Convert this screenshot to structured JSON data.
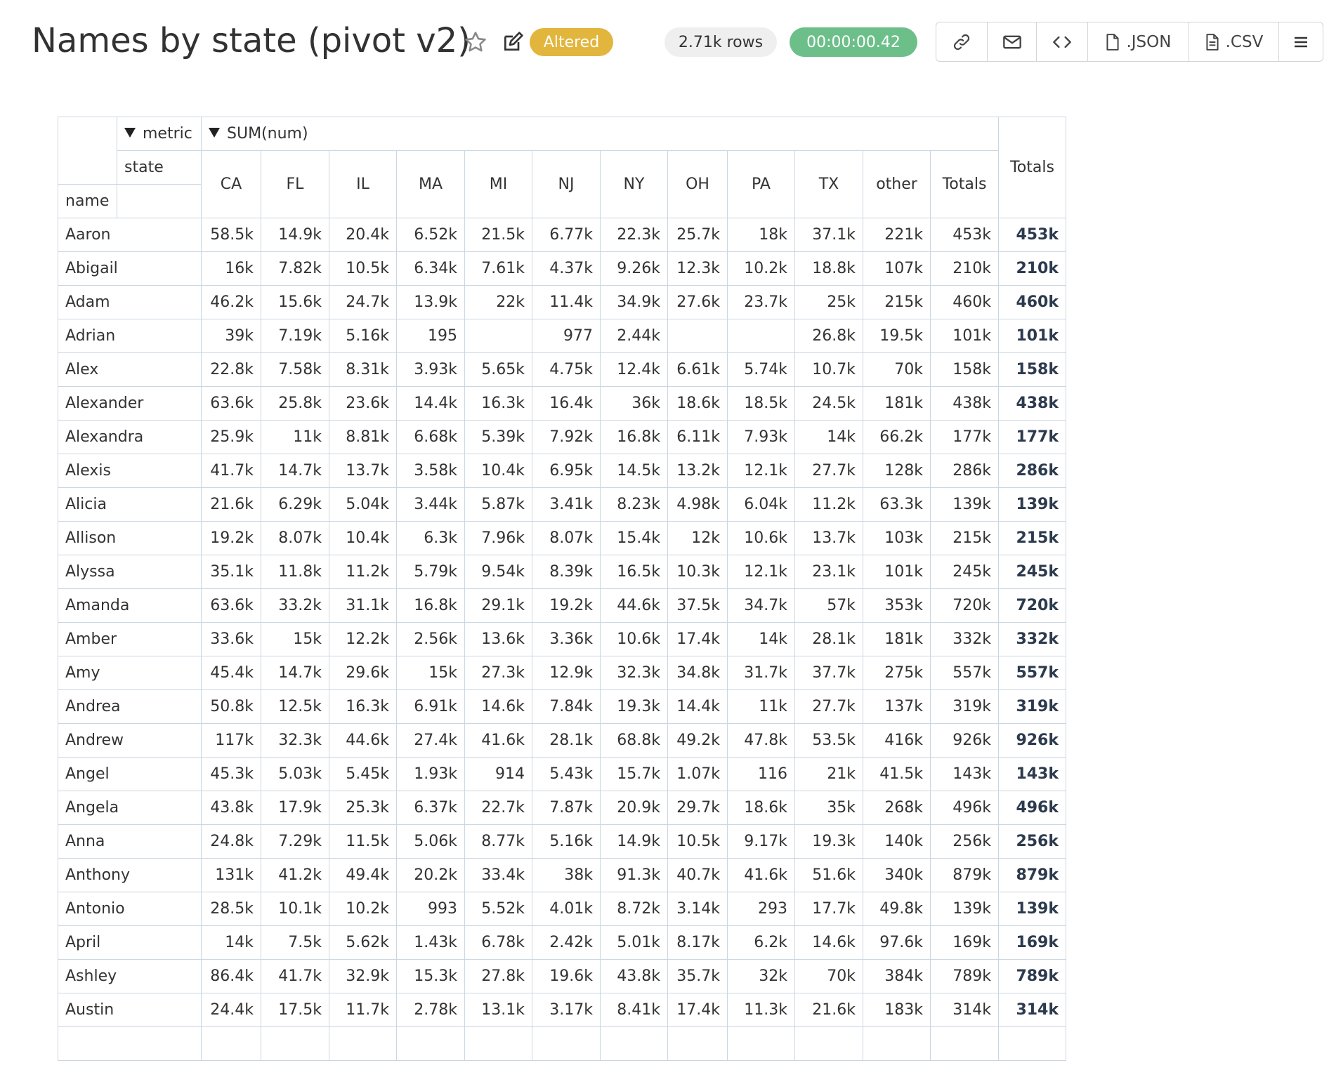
{
  "header": {
    "title": "Names by state (pivot v2)",
    "badge": "Altered",
    "row_count": "2.71k rows",
    "timer": "00:00:00.42"
  },
  "toolbar": {
    "json": ".JSON",
    "csv": ".CSV"
  },
  "table": {
    "metric_label": "metric",
    "metric": "SUM(num)",
    "state_label": "state",
    "name_label": "name",
    "totals_label": "Totals",
    "columns": [
      "CA",
      "FL",
      "IL",
      "MA",
      "MI",
      "NJ",
      "NY",
      "OH",
      "PA",
      "TX",
      "other",
      "Totals"
    ],
    "rows": [
      [
        "Aaron",
        "58.5k",
        "14.9k",
        "20.4k",
        "6.52k",
        "21.5k",
        "6.77k",
        "22.3k",
        "25.7k",
        "18k",
        "37.1k",
        "221k",
        "453k",
        "453k"
      ],
      [
        "Abigail",
        "16k",
        "7.82k",
        "10.5k",
        "6.34k",
        "7.61k",
        "4.37k",
        "9.26k",
        "12.3k",
        "10.2k",
        "18.8k",
        "107k",
        "210k",
        "210k"
      ],
      [
        "Adam",
        "46.2k",
        "15.6k",
        "24.7k",
        "13.9k",
        "22k",
        "11.4k",
        "34.9k",
        "27.6k",
        "23.7k",
        "25k",
        "215k",
        "460k",
        "460k"
      ],
      [
        "Adrian",
        "39k",
        "7.19k",
        "5.16k",
        "195",
        null,
        "977",
        "2.44k",
        null,
        null,
        "26.8k",
        "19.5k",
        "101k",
        "101k"
      ],
      [
        "Alex",
        "22.8k",
        "7.58k",
        "8.31k",
        "3.93k",
        "5.65k",
        "4.75k",
        "12.4k",
        "6.61k",
        "5.74k",
        "10.7k",
        "70k",
        "158k",
        "158k"
      ],
      [
        "Alexander",
        "63.6k",
        "25.8k",
        "23.6k",
        "14.4k",
        "16.3k",
        "16.4k",
        "36k",
        "18.6k",
        "18.5k",
        "24.5k",
        "181k",
        "438k",
        "438k"
      ],
      [
        "Alexandra",
        "25.9k",
        "11k",
        "8.81k",
        "6.68k",
        "5.39k",
        "7.92k",
        "16.8k",
        "6.11k",
        "7.93k",
        "14k",
        "66.2k",
        "177k",
        "177k"
      ],
      [
        "Alexis",
        "41.7k",
        "14.7k",
        "13.7k",
        "3.58k",
        "10.4k",
        "6.95k",
        "14.5k",
        "13.2k",
        "12.1k",
        "27.7k",
        "128k",
        "286k",
        "286k"
      ],
      [
        "Alicia",
        "21.6k",
        "6.29k",
        "5.04k",
        "3.44k",
        "5.87k",
        "3.41k",
        "8.23k",
        "4.98k",
        "6.04k",
        "11.2k",
        "63.3k",
        "139k",
        "139k"
      ],
      [
        "Allison",
        "19.2k",
        "8.07k",
        "10.4k",
        "6.3k",
        "7.96k",
        "8.07k",
        "15.4k",
        "12k",
        "10.6k",
        "13.7k",
        "103k",
        "215k",
        "215k"
      ],
      [
        "Alyssa",
        "35.1k",
        "11.8k",
        "11.2k",
        "5.79k",
        "9.54k",
        "8.39k",
        "16.5k",
        "10.3k",
        "12.1k",
        "23.1k",
        "101k",
        "245k",
        "245k"
      ],
      [
        "Amanda",
        "63.6k",
        "33.2k",
        "31.1k",
        "16.8k",
        "29.1k",
        "19.2k",
        "44.6k",
        "37.5k",
        "34.7k",
        "57k",
        "353k",
        "720k",
        "720k"
      ],
      [
        "Amber",
        "33.6k",
        "15k",
        "12.2k",
        "2.56k",
        "13.6k",
        "3.36k",
        "10.6k",
        "17.4k",
        "14k",
        "28.1k",
        "181k",
        "332k",
        "332k"
      ],
      [
        "Amy",
        "45.4k",
        "14.7k",
        "29.6k",
        "15k",
        "27.3k",
        "12.9k",
        "32.3k",
        "34.8k",
        "31.7k",
        "37.7k",
        "275k",
        "557k",
        "557k"
      ],
      [
        "Andrea",
        "50.8k",
        "12.5k",
        "16.3k",
        "6.91k",
        "14.6k",
        "7.84k",
        "19.3k",
        "14.4k",
        "11k",
        "27.7k",
        "137k",
        "319k",
        "319k"
      ],
      [
        "Andrew",
        "117k",
        "32.3k",
        "44.6k",
        "27.4k",
        "41.6k",
        "28.1k",
        "68.8k",
        "49.2k",
        "47.8k",
        "53.5k",
        "416k",
        "926k",
        "926k"
      ],
      [
        "Angel",
        "45.3k",
        "5.03k",
        "5.45k",
        "1.93k",
        "914",
        "5.43k",
        "15.7k",
        "1.07k",
        "116",
        "21k",
        "41.5k",
        "143k",
        "143k"
      ],
      [
        "Angela",
        "43.8k",
        "17.9k",
        "25.3k",
        "6.37k",
        "22.7k",
        "7.87k",
        "20.9k",
        "29.7k",
        "18.6k",
        "35k",
        "268k",
        "496k",
        "496k"
      ],
      [
        "Anna",
        "24.8k",
        "7.29k",
        "11.5k",
        "5.06k",
        "8.77k",
        "5.16k",
        "14.9k",
        "10.5k",
        "9.17k",
        "19.3k",
        "140k",
        "256k",
        "256k"
      ],
      [
        "Anthony",
        "131k",
        "41.2k",
        "49.4k",
        "20.2k",
        "33.4k",
        "38k",
        "91.3k",
        "40.7k",
        "41.6k",
        "51.6k",
        "340k",
        "879k",
        "879k"
      ],
      [
        "Antonio",
        "28.5k",
        "10.1k",
        "10.2k",
        "993",
        "5.52k",
        "4.01k",
        "8.72k",
        "3.14k",
        "293",
        "17.7k",
        "49.8k",
        "139k",
        "139k"
      ],
      [
        "April",
        "14k",
        "7.5k",
        "5.62k",
        "1.43k",
        "6.78k",
        "2.42k",
        "5.01k",
        "8.17k",
        "6.2k",
        "14.6k",
        "97.6k",
        "169k",
        "169k"
      ],
      [
        "Ashley",
        "86.4k",
        "41.7k",
        "32.9k",
        "15.3k",
        "27.8k",
        "19.6k",
        "43.8k",
        "35.7k",
        "32k",
        "70k",
        "384k",
        "789k",
        "789k"
      ],
      [
        "Austin",
        "24.4k",
        "17.5k",
        "11.7k",
        "2.78k",
        "13.1k",
        "3.17k",
        "8.41k",
        "17.4k",
        "11.3k",
        "21.6k",
        "183k",
        "314k",
        "314k"
      ]
    ]
  }
}
